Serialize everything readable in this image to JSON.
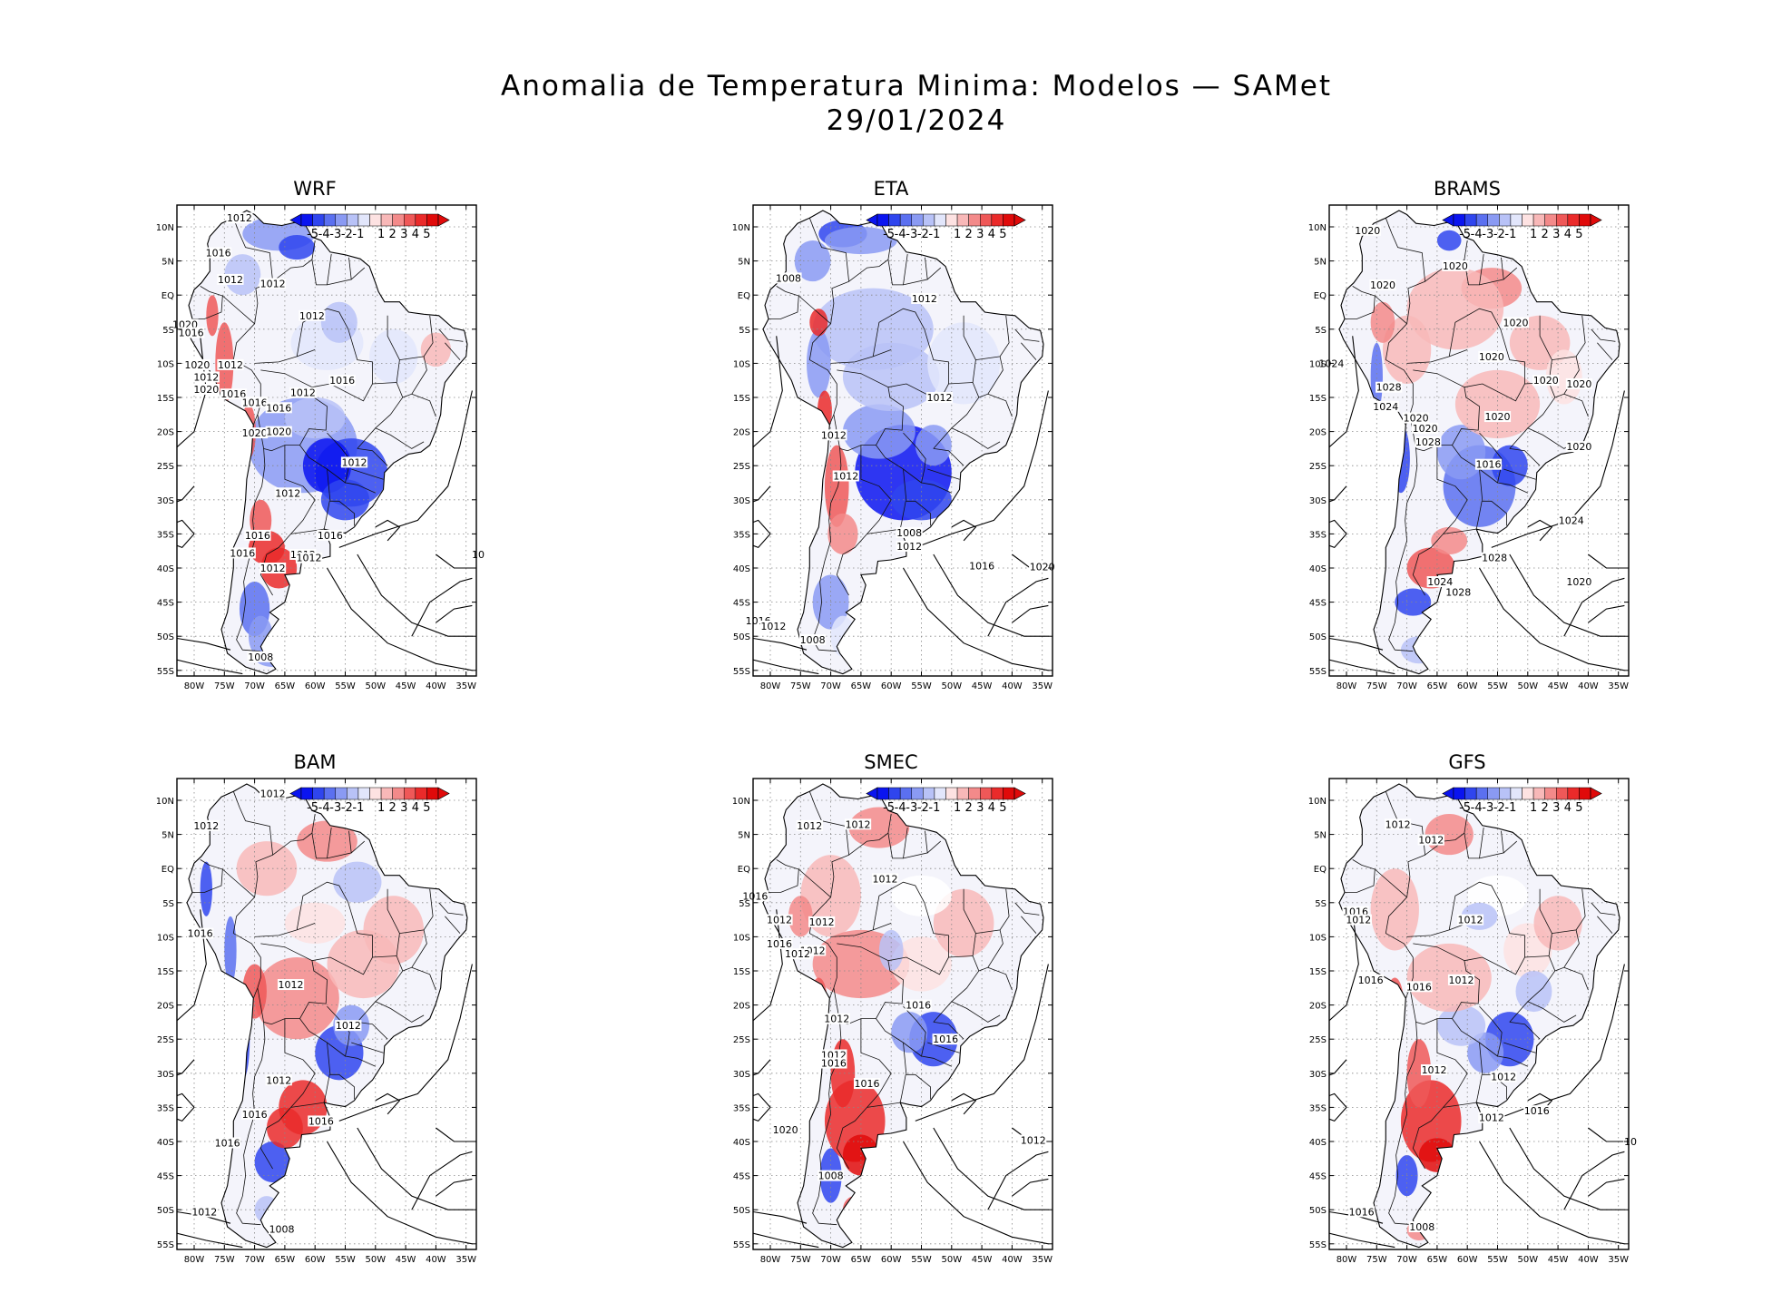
{
  "title": {
    "line1": "Anomalia de Temperatura Minima: Modelos — SAMet",
    "line2": "29/01/2024"
  },
  "colorbar": {
    "labels": [
      "-5",
      "-4",
      "-3",
      "-2",
      "-1",
      "1",
      "2",
      "3",
      "4",
      "5"
    ],
    "colors": [
      "#0a14f0",
      "#2f45ee",
      "#5b70f0",
      "#8a9af3",
      "#b8c2f7",
      "#e2e6fb",
      "#ffffff",
      "#fde2e2",
      "#f8b8b8",
      "#f38a8a",
      "#ef5858",
      "#ea2a2a",
      "#e00a0a"
    ]
  },
  "axes": {
    "lat_labels": [
      "10N",
      "5N",
      "EQ",
      "5S",
      "10S",
      "15S",
      "20S",
      "25S",
      "30S",
      "35S",
      "40S",
      "45S",
      "50S",
      "55S"
    ],
    "lon_labels": [
      "80W",
      "75W",
      "70W",
      "65W",
      "60W",
      "55W",
      "50W",
      "45W",
      "40W",
      "35W"
    ]
  },
  "panels": [
    {
      "name": "WRF",
      "contour_labels": [
        "1012",
        "1016",
        "1012",
        "1012",
        "1012",
        "1020",
        "1016",
        "1020",
        "1012",
        "1012",
        "1020",
        "1016",
        "1016",
        "1016",
        "1012",
        "1016",
        "1020",
        "1020",
        "1012",
        "1012",
        "1012",
        "1016",
        "1016",
        "1016",
        "1012",
        "1012",
        "1008",
        "10"
      ]
    },
    {
      "name": "ETA",
      "contour_labels": [
        "1008",
        "1012",
        "1012",
        "1012",
        "1012",
        "1008",
        "1012",
        "1016",
        "1020",
        "1016",
        "1012",
        "1008"
      ]
    },
    {
      "name": "BRAMS",
      "contour_labels": [
        "1020",
        "1020",
        "1020",
        "1020",
        "1020",
        "1024",
        "1020",
        "1020",
        "1028",
        "1024",
        "1020",
        "1020",
        "1020",
        "1028",
        "1016",
        "1020",
        "1024",
        "1024",
        "1028",
        "1028",
        "1020"
      ]
    },
    {
      "name": "BAM",
      "contour_labels": [
        "1012",
        "1012",
        "1016",
        "1012",
        "1012",
        "1012",
        "1016",
        "1016",
        "1016",
        "1012",
        "1008"
      ]
    },
    {
      "name": "SMEC",
      "contour_labels": [
        "1016",
        "1012",
        "1012",
        "1012",
        "1016",
        "1012",
        "1012",
        "1012",
        "1016",
        "1012",
        "1012",
        "1016",
        "1016",
        "1012",
        "1016",
        "1016",
        "1020",
        "1012",
        "1008"
      ]
    },
    {
      "name": "GFS",
      "contour_labels": [
        "1012",
        "1012",
        "1016",
        "1012",
        "1012",
        "1016",
        "1016",
        "1012",
        "1012",
        "1012",
        "1016",
        "1012",
        "1016",
        "1008",
        "10"
      ]
    }
  ]
}
